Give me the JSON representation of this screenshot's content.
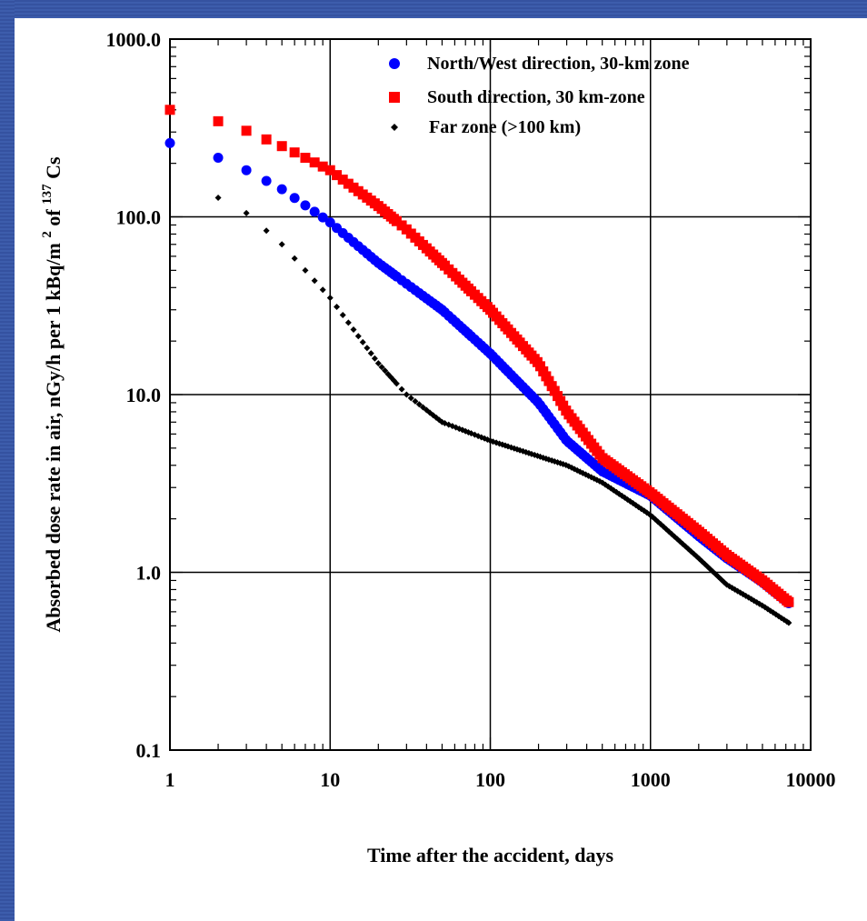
{
  "chart_data": {
    "type": "scatter",
    "x_scale": "log",
    "y_scale": "log",
    "xlim": [
      1,
      10000
    ],
    "ylim": [
      0.1,
      1000
    ],
    "x_ticks": [
      "1",
      "10",
      "100",
      "1000",
      "10000"
    ],
    "y_ticks": [
      "0.1",
      "1.0",
      "10.0",
      "100.0",
      "1000.0"
    ],
    "xlabel": "Time after the accident, days",
    "ylabel_parts": {
      "main": "Absorbed dose rate in air, nGy/h per 1 kBq/m",
      "sup1": "2",
      "mid": " of ",
      "sup2": "137",
      "end": "Cs"
    },
    "grid": true,
    "legend_position": "top-right",
    "series": [
      {
        "name": "North/West direction, 30-km zone",
        "marker": "circle",
        "color": "#0000ff",
        "points": [
          [
            1,
            260
          ],
          [
            2,
            215
          ],
          [
            3,
            183
          ],
          [
            5,
            143
          ],
          [
            10,
            93
          ],
          [
            20,
            55
          ],
          [
            30,
            42
          ],
          [
            50,
            30
          ],
          [
            100,
            17
          ],
          [
            200,
            9.0
          ],
          [
            300,
            5.5
          ],
          [
            500,
            3.7
          ],
          [
            1000,
            2.7
          ],
          [
            2000,
            1.6
          ],
          [
            3000,
            1.2
          ],
          [
            5000,
            0.88
          ],
          [
            7300,
            0.67
          ]
        ]
      },
      {
        "name": "South direction, 30 km-zone",
        "marker": "square",
        "color": "#ff0000",
        "points": [
          [
            1,
            400
          ],
          [
            2,
            345
          ],
          [
            3,
            305
          ],
          [
            5,
            250
          ],
          [
            10,
            183
          ],
          [
            20,
            115
          ],
          [
            30,
            85
          ],
          [
            50,
            55
          ],
          [
            100,
            30
          ],
          [
            200,
            15
          ],
          [
            300,
            8.0
          ],
          [
            500,
            4.4
          ],
          [
            1000,
            2.8
          ],
          [
            2000,
            1.7
          ],
          [
            3000,
            1.25
          ],
          [
            5000,
            0.9
          ],
          [
            7300,
            0.68
          ]
        ]
      },
      {
        "name": "Far zone (>100 km)",
        "marker": "diamond",
        "color": "#000000",
        "points": [
          [
            2,
            128
          ],
          [
            3,
            105
          ],
          [
            5,
            70
          ],
          [
            10,
            35
          ],
          [
            20,
            15
          ],
          [
            30,
            10
          ],
          [
            50,
            7.0
          ],
          [
            100,
            5.5
          ],
          [
            200,
            4.5
          ],
          [
            300,
            4.0
          ],
          [
            500,
            3.2
          ],
          [
            1000,
            2.1
          ],
          [
            2000,
            1.2
          ],
          [
            3000,
            0.85
          ],
          [
            5000,
            0.65
          ],
          [
            7300,
            0.52
          ]
        ]
      }
    ]
  }
}
